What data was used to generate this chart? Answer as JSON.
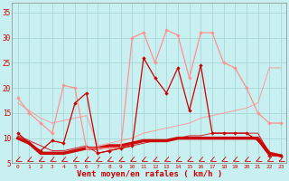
{
  "xlabel": "Vent moyen/en rafales ( km/h )",
  "background_color": "#c8f0f0",
  "grid_color": "#a8d8d8",
  "x_values": [
    0,
    1,
    2,
    3,
    4,
    5,
    6,
    7,
    8,
    9,
    10,
    11,
    12,
    13,
    14,
    15,
    16,
    17,
    18,
    19,
    20,
    21,
    22,
    23
  ],
  "rafales_y": [
    18,
    15,
    13,
    11,
    20.5,
    20,
    8,
    8,
    8,
    8,
    30,
    31,
    25,
    31.5,
    30.5,
    22,
    31,
    31,
    25,
    24,
    20,
    15,
    13,
    13
  ],
  "rafales_color": "#ff9090",
  "moyen_y": [
    11,
    9,
    7.5,
    9.5,
    9,
    17,
    19,
    7,
    7.5,
    8,
    8.5,
    26,
    22,
    19,
    24,
    15.5,
    24.5,
    11,
    11,
    11,
    11,
    9.5,
    6.5,
    6.5
  ],
  "moyen_color": "#cc0000",
  "trend_rafales_y": [
    17,
    15.5,
    14,
    13,
    13.5,
    14,
    14.5,
    8.5,
    9,
    9.5,
    10,
    11,
    11.5,
    12,
    12.5,
    13,
    14,
    14.5,
    15,
    15.5,
    16,
    17,
    24,
    24
  ],
  "trend_rafales_color": "#ff9090",
  "trend_moyen_y": [
    10.5,
    9.5,
    8.5,
    7.5,
    7.5,
    8,
    8.5,
    7,
    7.5,
    8,
    8.5,
    9,
    9.5,
    9.5,
    10,
    10.5,
    10.5,
    11,
    11,
    11,
    11,
    11,
    7,
    6.5
  ],
  "trend_moyen_color": "#cc0000",
  "thick_moyen_y": [
    10,
    9,
    7,
    7,
    7,
    7.5,
    8,
    8,
    8.5,
    8.5,
    9,
    9.5,
    9.5,
    9.5,
    10,
    10,
    10,
    10,
    10,
    10,
    10,
    10,
    7,
    6.5
  ],
  "thick_moyen_color": "#cc0000",
  "ylim": [
    5,
    37
  ],
  "xlim": [
    -0.5,
    23.5
  ],
  "yticks": [
    5,
    10,
    15,
    20,
    25,
    30,
    35
  ],
  "ytick_labels": [
    "5",
    "10",
    "15",
    "20",
    "25",
    "30",
    "35"
  ]
}
